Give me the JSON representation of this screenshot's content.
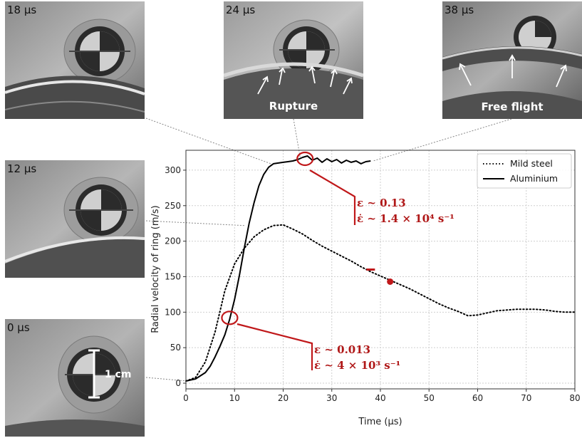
{
  "photos": [
    {
      "id": "p18",
      "label": "18 μs"
    },
    {
      "id": "p24",
      "label": "24 μs",
      "caption": "Rupture"
    },
    {
      "id": "p38",
      "label": "38 μs",
      "caption": "Free flight"
    },
    {
      "id": "p12",
      "label": "12 μs"
    },
    {
      "id": "p0",
      "label": "0 μs",
      "scale_label": "1 cm"
    }
  ],
  "annotations": {
    "upper": {
      "strain": "ε ~ 0.13",
      "rate": "ε̇ ~ 1.4 × 10⁴ s⁻¹"
    },
    "lower": {
      "strain": "ε ~ 0.013",
      "rate": "ε̇ ~ 4 × 10³ s⁻¹"
    }
  },
  "chart_data": {
    "type": "line",
    "xlabel": "Time (μs)",
    "ylabel": "Radial velocity of ring (m/s)",
    "xlim": [
      0,
      80
    ],
    "ylim": [
      -8,
      328
    ],
    "xticks": [
      0,
      10,
      20,
      30,
      40,
      50,
      60,
      70,
      80
    ],
    "yticks": [
      0,
      50,
      100,
      150,
      200,
      250,
      300
    ],
    "grid": true,
    "legend_position": "top-right",
    "series": [
      {
        "name": "Mild steel",
        "style": "dotted",
        "color": "#000000",
        "x": [
          0,
          2,
          4,
          6,
          8,
          10,
          12,
          14,
          16,
          18,
          20,
          22,
          24,
          26,
          28,
          30,
          32,
          34,
          36,
          38,
          40,
          42,
          44,
          46,
          48,
          50,
          52,
          54,
          56,
          58,
          60,
          62,
          64,
          66,
          68,
          70,
          72,
          74,
          76,
          78,
          80
        ],
        "y": [
          3,
          8,
          30,
          72,
          130,
          168,
          190,
          206,
          216,
          222,
          223,
          217,
          210,
          201,
          193,
          186,
          179,
          172,
          164,
          157,
          151,
          145,
          139,
          133,
          126,
          119,
          112,
          106,
          101,
          95,
          96,
          99,
          102,
          103,
          104,
          104,
          104,
          103,
          101,
          100,
          100
        ]
      },
      {
        "name": "Aluminium",
        "style": "solid",
        "color": "#000000",
        "x": [
          0,
          2,
          4,
          5,
          6,
          7,
          8,
          9,
          10,
          11,
          12,
          13,
          14,
          15,
          16,
          17,
          18,
          19,
          20,
          21,
          22,
          23,
          24,
          25,
          26,
          27,
          28,
          29,
          30,
          31,
          32,
          33,
          34,
          35,
          36,
          37,
          38
        ],
        "y": [
          3,
          6,
          15,
          24,
          37,
          52,
          68,
          90,
          118,
          152,
          190,
          225,
          254,
          278,
          294,
          304,
          309,
          310,
          311,
          312,
          313,
          315,
          318,
          320,
          314,
          317,
          311,
          316,
          312,
          315,
          310,
          314,
          311,
          313,
          309,
          312,
          313
        ]
      }
    ],
    "markers": [
      {
        "type": "circle",
        "x": 24.5,
        "y": 316
      },
      {
        "type": "circle",
        "x": 9,
        "y": 92
      },
      {
        "type": "dot",
        "x": 42,
        "y": 143
      },
      {
        "type": "dash",
        "x": 38,
        "y": 160
      }
    ],
    "accent_color": "#c0181a"
  }
}
